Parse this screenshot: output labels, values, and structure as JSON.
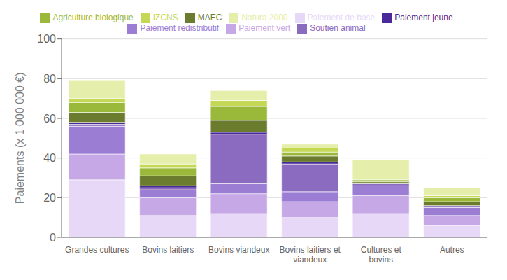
{
  "chart_data": {
    "type": "bar",
    "stacked": true,
    "categories": [
      "Grandes cultures",
      "Bovins laitiers",
      "Bovins viandeux",
      "Bovins laitiers et\nviandeux",
      "Cultures et\nbovins",
      "Autres"
    ],
    "series": [
      {
        "name": "Paiement de base",
        "color": "#e8d8f8",
        "values": [
          29,
          11,
          12,
          10,
          12,
          6
        ]
      },
      {
        "name": "Paiement vert",
        "color": "#c5a8e5",
        "values": [
          13,
          9,
          10,
          8,
          9,
          5
        ]
      },
      {
        "name": "Paiement redistributif",
        "color": "#9b7ed4",
        "values": [
          14,
          4,
          5,
          5,
          5,
          4
        ]
      },
      {
        "name": "Soutien animal",
        "color": "#8a6bbf",
        "values": [
          1,
          1,
          25,
          14,
          1,
          1
        ]
      },
      {
        "name": "Paiement jeune",
        "color": "#4a2a9a",
        "values": [
          1,
          1,
          1,
          1,
          0,
          0
        ]
      },
      {
        "name": "MAEC",
        "color": "#6b7c2e",
        "values": [
          5,
          5,
          6,
          3,
          1,
          2
        ]
      },
      {
        "name": "Agriculture biologique",
        "color": "#9ab83a",
        "values": [
          5,
          4,
          7,
          2,
          1,
          2
        ]
      },
      {
        "name": "IZCNS",
        "color": "#c5d855",
        "values": [
          2,
          2,
          3,
          2,
          0,
          1
        ]
      },
      {
        "name": "Natura 2000",
        "color": "#e5eeaa",
        "values": [
          9,
          5,
          5,
          2,
          10,
          4
        ]
      }
    ],
    "ylabel": "Paiements (x 1 000 000 €)",
    "ylim": [
      0,
      100
    ],
    "yticks": [
      0,
      20,
      40,
      60,
      80,
      100
    ],
    "grid": true,
    "legend": "top"
  }
}
